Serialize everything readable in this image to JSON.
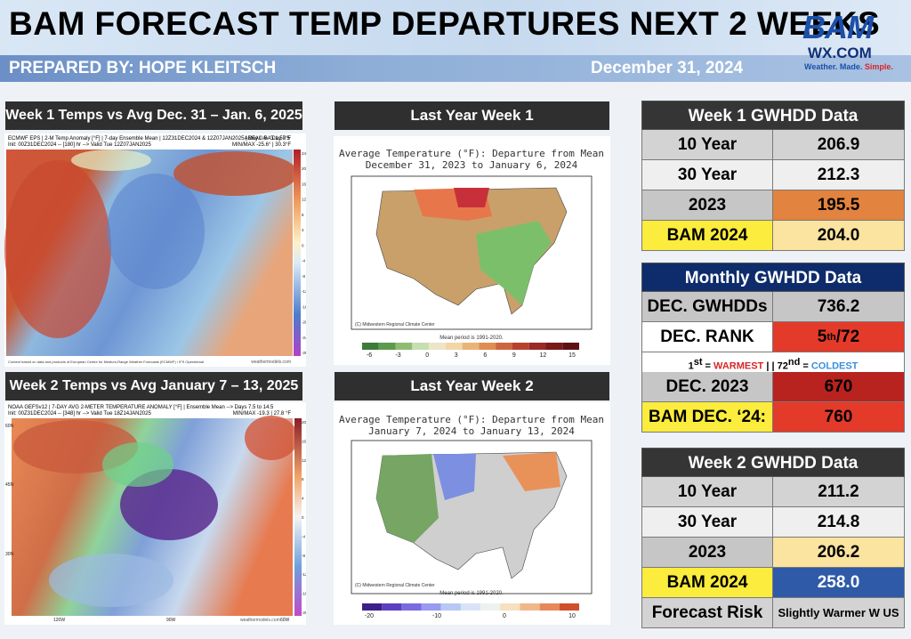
{
  "header": {
    "title": "BAM FORECAST TEMP DEPARTURES NEXT 2 WEEKS",
    "prepared_by": "PREPARED BY: HOPE KLEITSCH",
    "date": "December 31, 2024",
    "logo_main": "BAM",
    "logo_sub": "WX.COM",
    "logo_tagline_1": "Weather. Made.",
    "logo_tagline_2": "Simple."
  },
  "panels": {
    "week1": {
      "title": "Week 1 Temps vs Avg  Dec. 31 – Jan. 6, 2025",
      "header_line1": "ECMWF EPS | 2-M Temp Anomaly [°F] | 7-day Ensemble Mean | 12Z31DEC2024 & 12Z07JAN2025 | Day 0.5 - Day 7.5",
      "header_line2": "Init: 00Z31DEC2024 -- [180] hr --> Valid Tue 12Z07JAN2025",
      "header_right": "AREAL AVG 1.50°F",
      "header_right2": "MIN/MAX -25.6° | 30.3°F",
      "footer": "Content based on data and products of European Centre for Medium-Range Weather Forecasts (ECMWF) / IFS Operational",
      "credit": "weathermodels.com",
      "scale": [
        "24",
        "20",
        "16",
        "12",
        "8",
        "4",
        "0",
        "-4",
        "-8",
        "-12",
        "-16",
        "-20",
        "-24",
        "-28"
      ]
    },
    "week2": {
      "title": "Week 2 Temps vs Avg  January 7 – 13, 2025",
      "header_line1": "NOAA GEFSv12 | 7-DAY AVG 2-METER TEMPERATURE ANOMALY [°F] | Ensemble Mean --> Days 7.5 to 14.5",
      "header_line2": "Init: 00Z31DEC2024 -- [348] hr --> Valid Tue 18Z14JAN2025",
      "header_right": "MIN/MAX -19.3 | 27.8 °F",
      "lat_labels": [
        "60N",
        "45N",
        "30N"
      ],
      "lon_labels": [
        "120W",
        "90W",
        "60W"
      ],
      "credit": "weathermodels.com",
      "scale": [
        "20",
        "16",
        "12",
        "8",
        "4",
        "0",
        "-4",
        "-8",
        "-12",
        "-16",
        "-20"
      ]
    },
    "ly_week1": {
      "title": "Last Year Week 1",
      "map_title": "Average Temperature (°F): Departure from Mean",
      "map_subtitle": "December 31, 2023 to January 6, 2024",
      "center": "(C) Midwestern Regional Climate Center",
      "period": "Mean period is 1991-2020.",
      "scale_labels": [
        "-6",
        "-3",
        "0",
        "3",
        "6",
        "9",
        "12",
        "15"
      ]
    },
    "ly_week2": {
      "title": "Last Year Week 2",
      "map_title": "Average Temperature (°F): Departure from Mean",
      "map_subtitle": "January 7, 2024 to January 13, 2024",
      "center": "(C) Midwestern Regional Climate Center",
      "period": "Mean period is 1991-2020.",
      "scale_labels": [
        "-20",
        "-10",
        "0",
        "10"
      ]
    }
  },
  "tables": {
    "week1": {
      "title": "Week 1 GWHDD Data",
      "header_color": "#353536",
      "rows": [
        {
          "label": "10 Year",
          "value": "206.9",
          "label_bg": "#d3d3d3",
          "value_bg": "#d3d3d3"
        },
        {
          "label": "30 Year",
          "value": "212.3",
          "label_bg": "#efefef",
          "value_bg": "#efefef"
        },
        {
          "label": "2023",
          "value": "195.5",
          "label_bg": "#c6c6c6",
          "value_bg": "#e2833f"
        },
        {
          "label": "BAM 2024",
          "value": "204.0",
          "label_bg": "#fbec3d",
          "value_bg": "#fbe3a0"
        }
      ]
    },
    "monthly": {
      "title": "Monthly GWHDD Data",
      "header_color": "#0e2c6b",
      "rows": [
        {
          "label": "DEC. GWHDDs",
          "value": "736.2",
          "label_bg": "#c6c6c6",
          "value_bg": "#c6c6c6"
        },
        {
          "label": "DEC. RANK",
          "value_main": "5",
          "value_sup": "th",
          "value_rest": "/72",
          "label_bg": "#ffffff",
          "value_bg": "#e43a2a"
        }
      ],
      "note_first": "1",
      "note_first_sup": "st",
      "note_eq": " = ",
      "note_warm": "WARMEST",
      "note_sep": " | | 72",
      "note_sep_sup": "nd",
      "note_eq2": " = ",
      "note_cold": "COLDEST",
      "rows2": [
        {
          "label": "DEC. 2023",
          "value": "670",
          "label_bg": "#c6c6c6",
          "value_bg": "#b8231f"
        },
        {
          "label": "BAM DEC. ‘24:",
          "value": "760",
          "label_bg": "#fbec3d",
          "value_bg": "#e43a2a"
        }
      ]
    },
    "week2": {
      "title": "Week 2 GWHDD Data",
      "header_color": "#353536",
      "rows": [
        {
          "label": "10 Year",
          "value": "211.2",
          "label_bg": "#d3d3d3",
          "value_bg": "#d3d3d3"
        },
        {
          "label": "30 Year",
          "value": "214.8",
          "label_bg": "#efefef",
          "value_bg": "#efefef"
        },
        {
          "label": "2023",
          "value": "206.2",
          "label_bg": "#c6c6c6",
          "value_bg": "#fbe3a0"
        },
        {
          "label": "BAM 2024",
          "value": "258.0",
          "label_bg": "#fbec3d",
          "value_bg": "#2e5aa8",
          "value_color": "#ffffff"
        },
        {
          "label": "Forecast Risk",
          "value": "Slightly Warmer W US",
          "label_bg": "#d3d3d3",
          "value_bg": "#d3d3d3",
          "small": true
        }
      ]
    }
  }
}
